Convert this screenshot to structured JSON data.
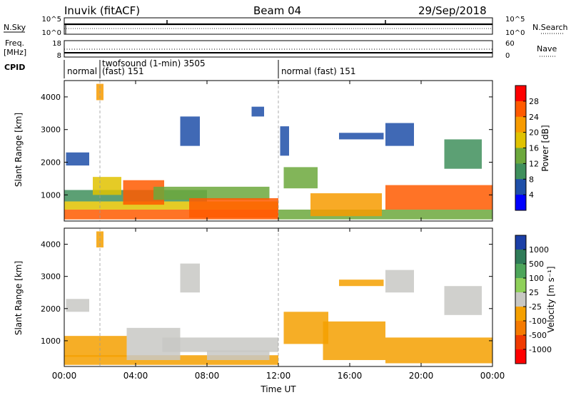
{
  "header": {
    "station": "Inuvik (fitACF)",
    "beam": "Beam 04",
    "date": "29/Sep/2018"
  },
  "strip_nsky": {
    "label": "N.Sky",
    "left_ticks": [
      "10^5",
      "10^0"
    ],
    "right_ticks": [
      "10^5",
      "10^0"
    ],
    "right_label": "N.Search"
  },
  "strip_freq": {
    "label_line1": "Freq.",
    "label_line2": "[MHz]",
    "left_ticks": [
      "18",
      "8"
    ],
    "right_ticks": [
      "60",
      "0"
    ],
    "right_label": "Nave"
  },
  "cpid": {
    "label": "CPID",
    "segments": [
      {
        "text": "normal",
        "start_hour": 0
      },
      {
        "text": "twofsound (1-min) 3505",
        "start_hour": 2
      },
      {
        "text": "(fast) 151",
        "start_hour": 2
      },
      {
        "text": "normal (fast) 151",
        "start_hour": 12
      }
    ]
  },
  "power_colorbar": {
    "label": "Power [dB]",
    "ticks": [
      "28",
      "24",
      "20",
      "16",
      "12",
      "8",
      "4"
    ],
    "colors": [
      "#ff0000",
      "#ff5a00",
      "#f79b00",
      "#e0c200",
      "#6ca83c",
      "#3f8f5c",
      "#1f4fa8",
      "#0000ff"
    ]
  },
  "velocity_colorbar": {
    "label": "Velocity [m s⁻¹]",
    "ticks": [
      "1000",
      "500",
      "100",
      "25",
      "-25",
      "-100",
      "-500",
      "-1000"
    ],
    "colors": [
      "#1b3fa6",
      "#2f7b58",
      "#4da55a",
      "#8fd05a",
      "#c8c8c4",
      "#f5a000",
      "#f57a00",
      "#f03a00",
      "#ff0000"
    ]
  },
  "chart_data": [
    {
      "type": "heatmap",
      "title": "",
      "xlabel": "",
      "ylabel": "Slant Range [km]",
      "xlim": [
        0,
        24
      ],
      "ylim": [
        200,
        4500
      ],
      "yticks": [
        1000,
        2000,
        3000,
        4000
      ],
      "xticks": [
        "00:00",
        "04:00",
        "08:00",
        "12:00",
        "16:00",
        "20:00",
        "00:00"
      ],
      "colorbar_label": "Power [dB]",
      "colorbar_range": [
        0,
        32
      ],
      "patches": [
        {
          "x0": 0.0,
          "x1": 12.0,
          "y0": 250,
          "y1": 550,
          "value": 26
        },
        {
          "x0": 0.0,
          "x1": 12.0,
          "y0": 550,
          "y1": 800,
          "value": 19
        },
        {
          "x0": 0.0,
          "x1": 8.0,
          "y0": 800,
          "y1": 1150,
          "value": 10
        },
        {
          "x0": 1.6,
          "x1": 3.2,
          "y0": 1000,
          "y1": 1550,
          "value": 17
        },
        {
          "x0": 3.3,
          "x1": 5.6,
          "y0": 700,
          "y1": 1450,
          "value": 24
        },
        {
          "x0": 5.0,
          "x1": 11.5,
          "y0": 850,
          "y1": 1250,
          "value": 12
        },
        {
          "x0": 7.0,
          "x1": 12.0,
          "y0": 300,
          "y1": 900,
          "value": 27
        },
        {
          "x0": 12.0,
          "x1": 24.0,
          "y0": 250,
          "y1": 550,
          "value": 12
        },
        {
          "x0": 12.3,
          "x1": 14.2,
          "y0": 1200,
          "y1": 1850,
          "value": 14
        },
        {
          "x0": 13.8,
          "x1": 17.8,
          "y0": 350,
          "y1": 1050,
          "value": 20
        },
        {
          "x0": 18.0,
          "x1": 24.0,
          "y0": 550,
          "y1": 1300,
          "value": 24
        },
        {
          "x0": 0.1,
          "x1": 1.4,
          "y0": 1900,
          "y1": 2300,
          "value": 6
        },
        {
          "x0": 1.8,
          "x1": 2.2,
          "y0": 3900,
          "y1": 4400,
          "value": 20
        },
        {
          "x0": 6.5,
          "x1": 7.6,
          "y0": 2500,
          "y1": 3400,
          "value": 7
        },
        {
          "x0": 12.1,
          "x1": 12.6,
          "y0": 2200,
          "y1": 3100,
          "value": 6
        },
        {
          "x0": 15.4,
          "x1": 17.9,
          "y0": 2700,
          "y1": 2900,
          "value": 7
        },
        {
          "x0": 18.0,
          "x1": 19.6,
          "y0": 2500,
          "y1": 3200,
          "value": 7
        },
        {
          "x0": 21.3,
          "x1": 23.4,
          "y0": 1800,
          "y1": 2700,
          "value": 8
        },
        {
          "x0": 10.5,
          "x1": 11.2,
          "y0": 3400,
          "y1": 3700,
          "value": 6
        }
      ]
    },
    {
      "type": "heatmap",
      "title": "",
      "xlabel": "Time UT",
      "ylabel": "Slant Range [km]",
      "xlim": [
        0,
        24
      ],
      "ylim": [
        200,
        4500
      ],
      "yticks": [
        1000,
        2000,
        3000,
        4000
      ],
      "xticks": [
        "00:00",
        "04:00",
        "08:00",
        "12:00",
        "16:00",
        "20:00",
        "00:00"
      ],
      "colorbar_label": "Velocity [m s⁻¹]",
      "colorbar_range": [
        -1000,
        1000
      ],
      "patches": [
        {
          "x0": 0.0,
          "x1": 3.5,
          "y0": 500,
          "y1": 1150,
          "value": -150
        },
        {
          "x0": 0.0,
          "x1": 12.0,
          "y0": 250,
          "y1": 550,
          "value": -300
        },
        {
          "x0": 3.5,
          "x1": 6.5,
          "y0": 400,
          "y1": 1400,
          "value": 80
        },
        {
          "x0": 5.5,
          "x1": 12.0,
          "y0": 650,
          "y1": 1100,
          "value": 0
        },
        {
          "x0": 8.0,
          "x1": 11.5,
          "y0": 400,
          "y1": 700,
          "value": 60
        },
        {
          "x0": 12.3,
          "x1": 14.8,
          "y0": 900,
          "y1": 1900,
          "value": -120
        },
        {
          "x0": 14.5,
          "x1": 18.0,
          "y0": 400,
          "y1": 1600,
          "value": -200
        },
        {
          "x0": 18.0,
          "x1": 24.0,
          "y0": 300,
          "y1": 1100,
          "value": -300
        },
        {
          "x0": 0.1,
          "x1": 1.4,
          "y0": 1900,
          "y1": 2300,
          "value": -80
        },
        {
          "x0": 1.8,
          "x1": 2.2,
          "y0": 3900,
          "y1": 4400,
          "value": -200
        },
        {
          "x0": 6.5,
          "x1": 7.6,
          "y0": 2500,
          "y1": 3400,
          "value": 90
        },
        {
          "x0": 15.4,
          "x1": 17.9,
          "y0": 2700,
          "y1": 2900,
          "value": -150
        },
        {
          "x0": 18.0,
          "x1": 19.6,
          "y0": 2500,
          "y1": 3200,
          "value": 10
        },
        {
          "x0": 21.3,
          "x1": 23.4,
          "y0": 1800,
          "y1": 2700,
          "value": 70
        }
      ]
    }
  ]
}
